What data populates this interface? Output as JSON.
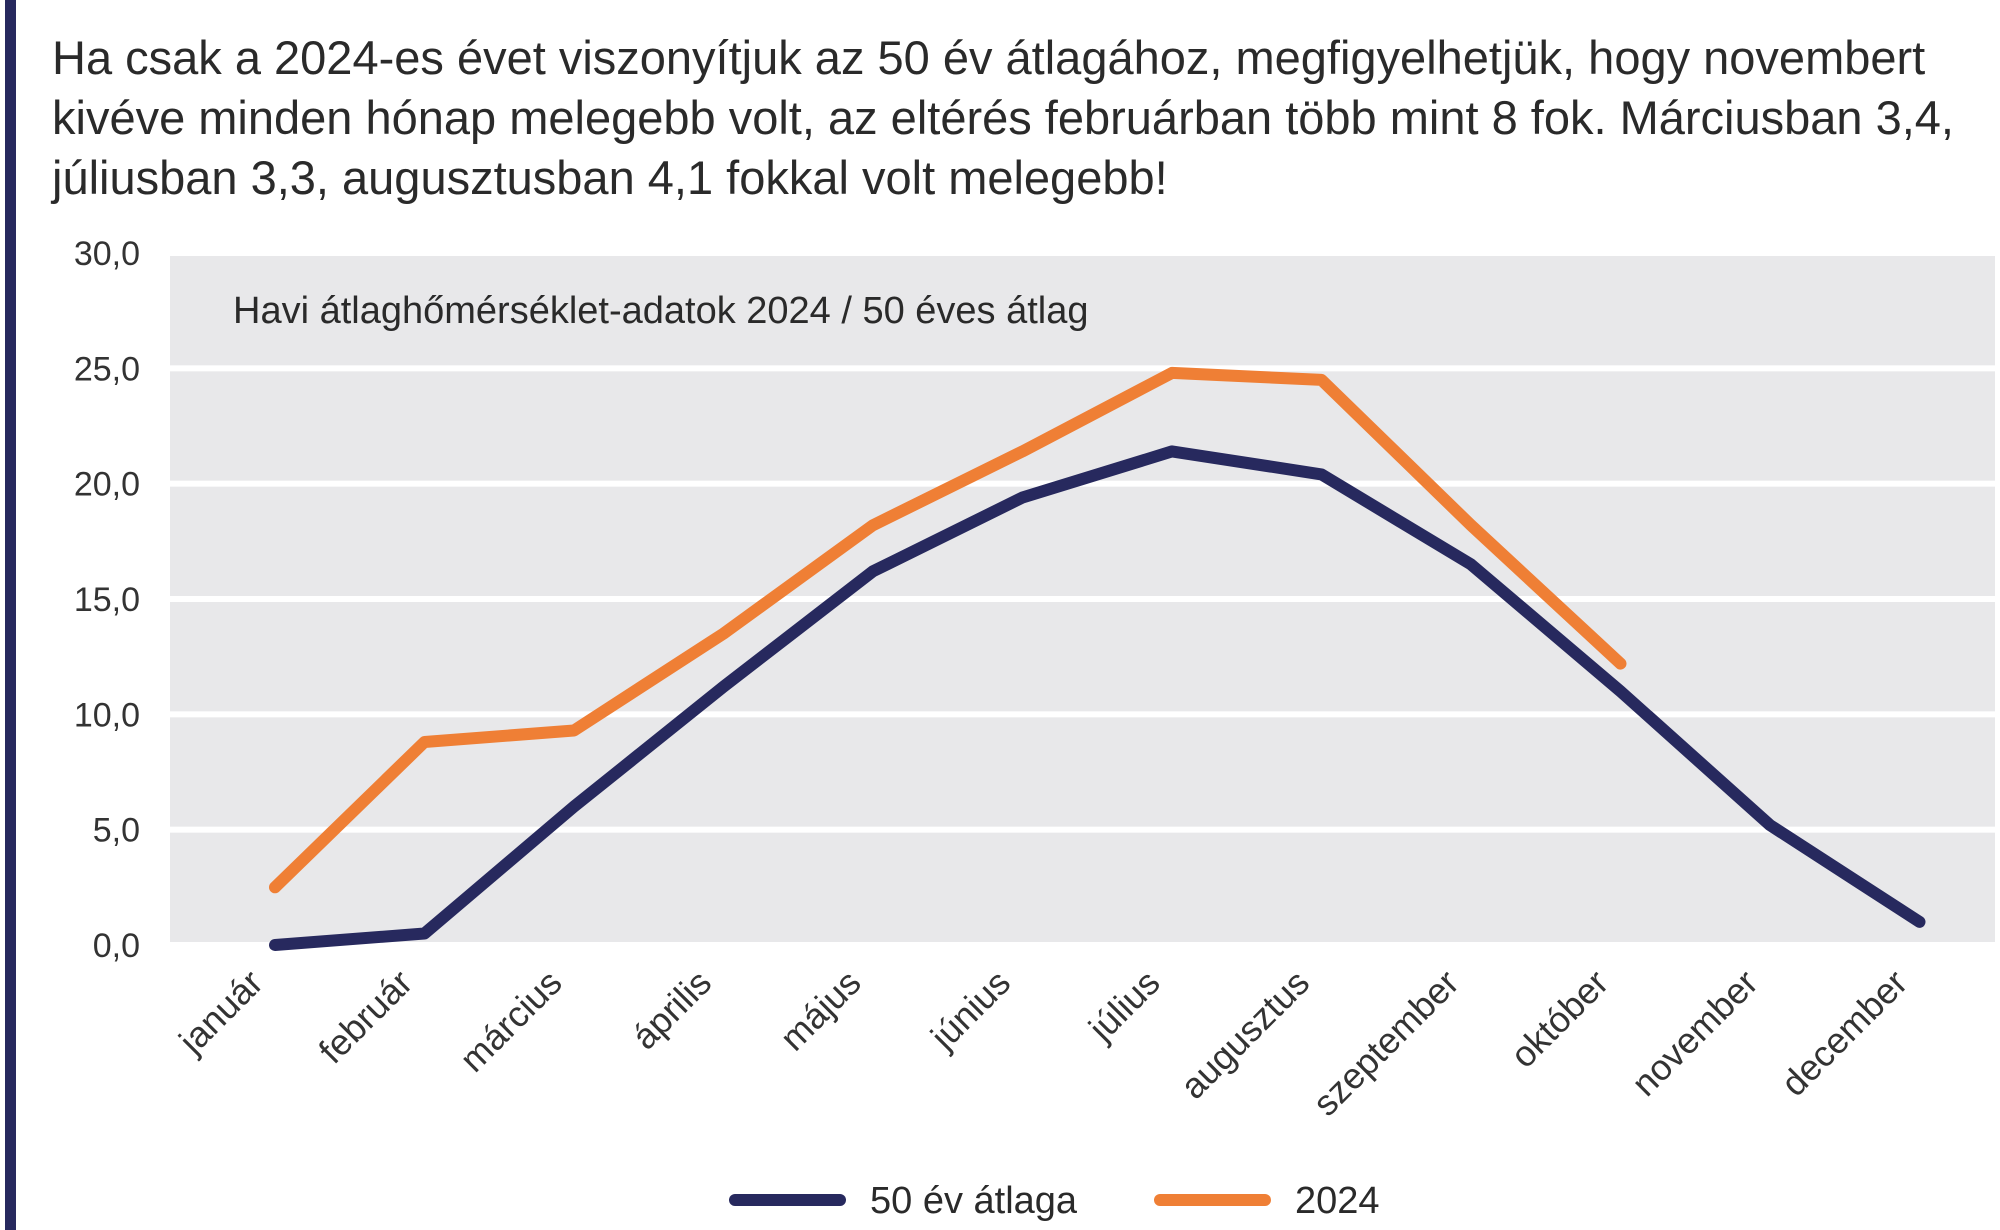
{
  "headline": "Ha csak a 2024-es évet viszonyítjuk az 50 év átlagához, megfigyelhetjük, hogy novembert kivéve minden hónap melegebb volt, az eltérés februárban több mint 8 fok. Márciusban 3,4, júliusban 3,3, augusztusban 4,1 fokkal volt melegebb!",
  "colors": {
    "accent": "#27295e",
    "plot_band": "#e8e8ea",
    "gridline": "#ffffff"
  },
  "chart_data": {
    "type": "line",
    "title": "Havi átlaghőmérséklet-adatok 2024 / 50 éves átlag",
    "categories": [
      "január",
      "február",
      "március",
      "április",
      "május",
      "június",
      "július",
      "augusztus",
      "szeptember",
      "október",
      "november",
      "december"
    ],
    "y_tick_labels": [
      "0,0",
      "5,0",
      "10,0",
      "15,0",
      "20,0",
      "25,0",
      "30,0"
    ],
    "ylim": [
      0,
      30
    ],
    "grid": true,
    "legend_position": "bottom",
    "series": [
      {
        "name": "50 év átlaga",
        "color": "#27295e",
        "values": [
          0.0,
          0.5,
          6.0,
          11.2,
          16.2,
          19.4,
          21.4,
          20.4,
          16.5,
          11.0,
          5.2,
          1.0
        ]
      },
      {
        "name": "2024",
        "color": "#ef7f35",
        "values": [
          2.5,
          8.8,
          9.3,
          13.5,
          18.2,
          21.4,
          24.8,
          24.5,
          18.2,
          12.2,
          null,
          null
        ]
      }
    ]
  }
}
